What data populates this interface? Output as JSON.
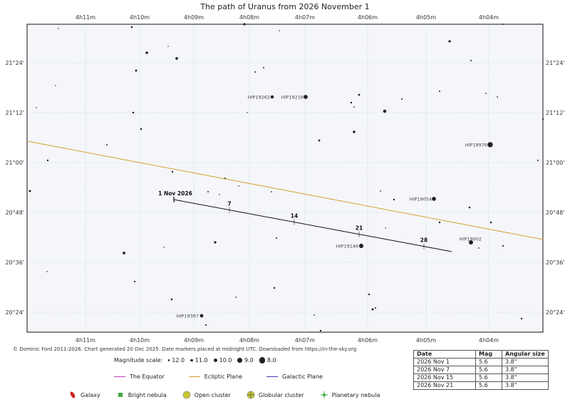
{
  "title": "The path of Uranus from 2026 November 1",
  "ra_labels": [
    "4h11m",
    "4h10m",
    "4h09m",
    "4h08m",
    "4h07m",
    "4h06m",
    "4h05m",
    "4h04m"
  ],
  "dec_labels": [
    "21°24'",
    "21°12'",
    "21°00'",
    "20°48'",
    "20°36'",
    "20°24'"
  ],
  "lines": {
    "ecliptic_color": "#d4a42a",
    "path_color": "#111111"
  },
  "path_dates": [
    {
      "label": "1 Nov 2026",
      "t": 0
    },
    {
      "label": "7",
      "t": 6
    },
    {
      "label": "14",
      "t": 13
    },
    {
      "label": "21",
      "t": 20
    },
    {
      "label": "28",
      "t": 27
    }
  ],
  "named_stars": [
    {
      "name": "HIP19262",
      "mag": 10.4
    },
    {
      "name": "HIP19216",
      "mag": 9.6
    },
    {
      "name": "HIP18976",
      "mag": 8.5
    },
    {
      "name": "HIP19054",
      "mag": 9.6
    },
    {
      "name": "HIP19002",
      "mag": 9.4
    },
    {
      "name": "HIP19146",
      "mag": 9.3
    },
    {
      "name": "HIP19367",
      "mag": 10.2
    }
  ],
  "credit": "© Dominic Ford 2011-2026. Chart generated 20 Dec 2025. Date markers placed at midnight UTC. Downloaded from https://in-the-sky.org",
  "magnitude_scale": {
    "label": "Magnitude scale:",
    "items": [
      {
        "text": "12.0",
        "mag": 12.0
      },
      {
        "text": "11.0",
        "mag": 11.0
      },
      {
        "text": "10.0",
        "mag": 10.0
      },
      {
        "text": "9.0",
        "mag": 9.0
      },
      {
        "text": "8.0",
        "mag": 8.0
      }
    ]
  },
  "line_legend": [
    {
      "label": "The Equator",
      "color": "#c040c0"
    },
    {
      "label": "Ecliptic Plane",
      "color": "#d4a42a"
    },
    {
      "label": "Galactic Plane",
      "color": "#3a3ab0"
    }
  ],
  "object_legend": [
    {
      "label": "Galaxy",
      "icon": "galaxy-icon",
      "color": "#cc2222"
    },
    {
      "label": "Bright nebula",
      "icon": "nebula-icon",
      "color": "#44aa44"
    },
    {
      "label": "Open cluster",
      "icon": "open-cluster-icon",
      "color": "#c8c830"
    },
    {
      "label": "Globular cluster",
      "icon": "globular-cluster-icon",
      "color": "#c8c830"
    },
    {
      "label": "Planetary nebula",
      "icon": "planetary-nebula-icon",
      "color": "#44aa44"
    }
  ],
  "ephemeris": {
    "headers": [
      "Date",
      "Mag",
      "Angular size"
    ],
    "rows": [
      [
        "2026 Nov 1",
        "5.6",
        "3.8\""
      ],
      [
        "2026 Nov 7",
        "5.6",
        "3.8\""
      ],
      [
        "2026 Nov 15",
        "5.6",
        "3.8\""
      ],
      [
        "2026 Nov 21",
        "5.6",
        "3.8\""
      ]
    ]
  }
}
